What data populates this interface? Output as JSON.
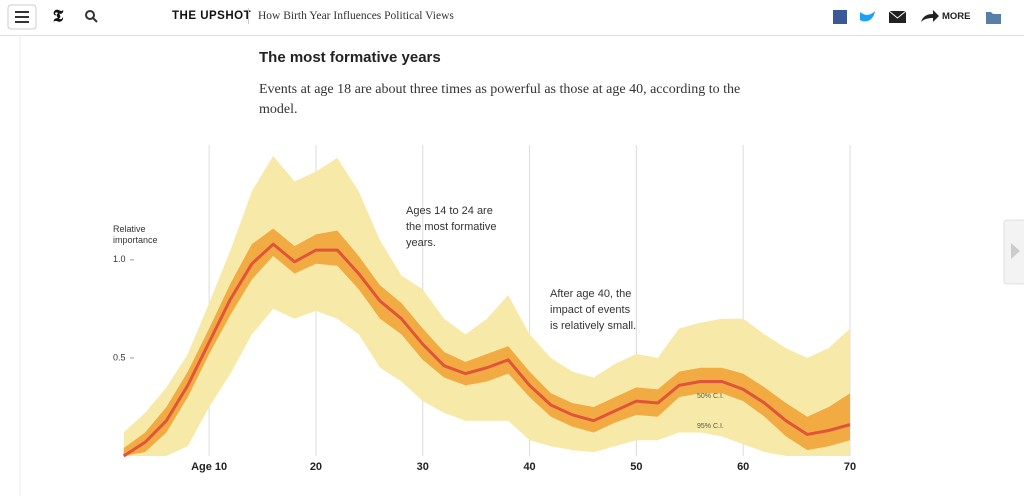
{
  "header": {
    "section": "THE UPSHOT",
    "headline": "How Birth Year Influences Political Views",
    "more": "MORE"
  },
  "article": {
    "heading": "The most formative years",
    "intro": "Events at age 18 are about three times as powerful as those at age 40, according to the model."
  },
  "chart_data": {
    "type": "band",
    "y_label": "Relative importance",
    "annotations": [
      "Ages 14 to 24 are the most formative years.",
      "After age 40, the impact of events is relatively small."
    ],
    "x": [
      2,
      4,
      6,
      8,
      10,
      12,
      14,
      16,
      18,
      20,
      22,
      24,
      26,
      28,
      30,
      32,
      34,
      36,
      38,
      40,
      42,
      44,
      46,
      48,
      50,
      52,
      54,
      56,
      58,
      60,
      62,
      64,
      66,
      68,
      70
    ],
    "xlim": [
      1,
      70
    ],
    "xticks": [
      {
        "value": 10,
        "label": "Age 10"
      },
      20,
      30,
      40,
      50,
      60,
      70
    ],
    "ylim": [
      0,
      1.55
    ],
    "yticks": [
      0.5,
      {
        "value": 1,
        "label": "1.0"
      }
    ],
    "grid": true,
    "series": [
      {
        "name": "95% C.I.",
        "color": "#f7eaa9",
        "lower": [
          0,
          0,
          0,
          0.05,
          0.25,
          0.42,
          0.62,
          0.75,
          0.7,
          0.74,
          0.7,
          0.62,
          0.45,
          0.38,
          0.28,
          0.22,
          0.18,
          0.18,
          0.18,
          0.08,
          0.05,
          0.03,
          0.02,
          0.05,
          0.08,
          0.08,
          0.12,
          0.12,
          0.1,
          0.06,
          0.02,
          0,
          0,
          0,
          0
        ],
        "upper": [
          0.12,
          0.22,
          0.35,
          0.52,
          0.78,
          1.05,
          1.35,
          1.53,
          1.4,
          1.45,
          1.52,
          1.35,
          1.1,
          0.92,
          0.85,
          0.7,
          0.62,
          0.7,
          0.82,
          0.62,
          0.5,
          0.43,
          0.4,
          0.47,
          0.52,
          0.5,
          0.65,
          0.68,
          0.7,
          0.7,
          0.62,
          0.55,
          0.5,
          0.55,
          0.65
        ]
      },
      {
        "name": "50% C.I.",
        "color": "#f2ab43",
        "lower": [
          0,
          0.02,
          0.12,
          0.3,
          0.52,
          0.72,
          0.9,
          1.02,
          0.93,
          0.98,
          0.97,
          0.85,
          0.7,
          0.62,
          0.49,
          0.4,
          0.36,
          0.38,
          0.42,
          0.3,
          0.2,
          0.15,
          0.12,
          0.17,
          0.21,
          0.2,
          0.3,
          0.32,
          0.32,
          0.28,
          0.2,
          0.1,
          0.03,
          0.05,
          0.08
        ],
        "upper": [
          0.04,
          0.12,
          0.25,
          0.43,
          0.65,
          0.88,
          1.08,
          1.16,
          1.07,
          1.13,
          1.15,
          1.02,
          0.87,
          0.78,
          0.65,
          0.53,
          0.48,
          0.52,
          0.56,
          0.43,
          0.32,
          0.27,
          0.25,
          0.3,
          0.35,
          0.34,
          0.43,
          0.45,
          0.45,
          0.42,
          0.35,
          0.27,
          0.2,
          0.25,
          0.32
        ]
      }
    ],
    "line": {
      "color": "#e0553a",
      "values": [
        0,
        0.07,
        0.18,
        0.36,
        0.58,
        0.8,
        0.98,
        1.08,
        0.99,
        1.05,
        1.05,
        0.93,
        0.79,
        0.7,
        0.57,
        0.46,
        0.42,
        0.45,
        0.49,
        0.36,
        0.26,
        0.21,
        0.18,
        0.23,
        0.28,
        0.27,
        0.36,
        0.38,
        0.38,
        0.34,
        0.27,
        0.18,
        0.11,
        0.13,
        0.16
      ]
    }
  }
}
